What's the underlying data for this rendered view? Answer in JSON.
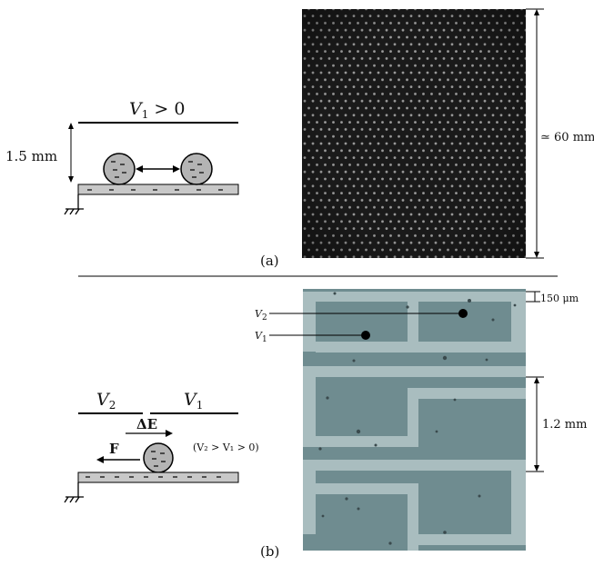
{
  "panel_a": {
    "caption": "(a)",
    "voltage_label_v": "V",
    "voltage_label_sub": "1",
    "voltage_label_rest": " > 0",
    "gap_label": "1.5 mm",
    "size_label": "≃ 60 mm"
  },
  "panel_b": {
    "caption": "(b)",
    "v2_label": "V",
    "v2_sub": "2",
    "v1_label": "V",
    "v1_sub": "1",
    "field_label": "ΔE",
    "force_label": "F",
    "inequality": "(V₂ > V₁ > 0)",
    "photo_v2": "V",
    "photo_v2_sub": "2",
    "photo_v1": "V",
    "photo_v1_sub": "1",
    "gap_label": "150 μm",
    "period_label": "1.2 mm"
  },
  "colors": {
    "photo_a_bg": "#1a1a1a",
    "photo_a_dot": "#9a9a9a",
    "photo_b_bg": "#6f8c90",
    "photo_b_track": "#a9bdbf",
    "substrate": "#c8c8c8",
    "sphere": "#b4b4b4"
  }
}
